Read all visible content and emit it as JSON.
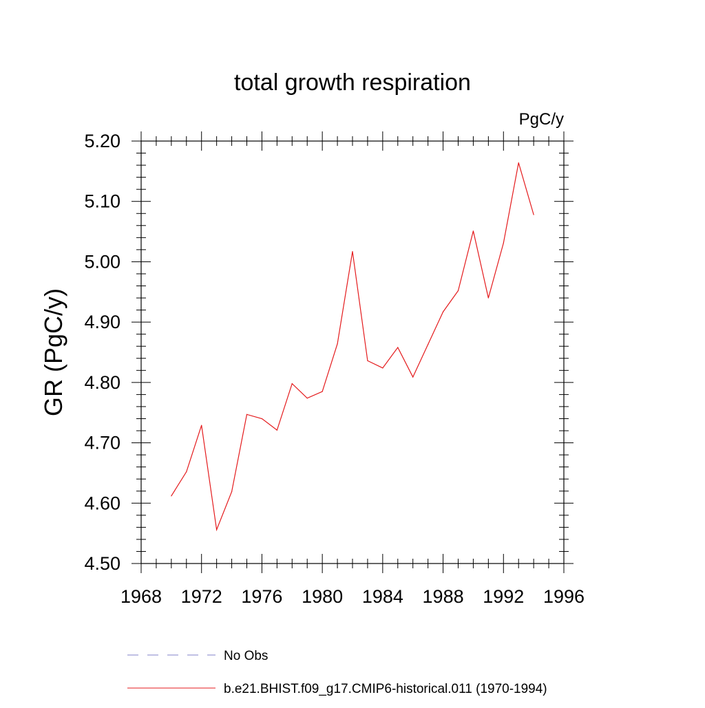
{
  "chart_data": {
    "type": "line",
    "title": "total growth respiration",
    "units": "PgC/y",
    "xlabel": "",
    "ylabel": "GR  (PgC/y)",
    "xlim": [
      1968,
      1996
    ],
    "ylim": [
      4.5,
      5.2
    ],
    "xticks": [
      1968,
      1972,
      1976,
      1980,
      1984,
      1988,
      1992,
      1996
    ],
    "yticks": [
      "4.50",
      "4.60",
      "4.70",
      "4.80",
      "4.90",
      "5.00",
      "5.10",
      "5.20"
    ],
    "grid": false,
    "legend_position": "bottom",
    "legend": [
      {
        "label": "No Obs",
        "color": "#8080c8",
        "style": "dashed"
      },
      {
        "label": "b.e21.BHIST.f09_g17.CMIP6-historical.011 (1970-1994)",
        "color": "#e41a1c",
        "style": "solid"
      }
    ],
    "series": [
      {
        "name": "b.e21.BHIST.f09_g17.CMIP6-historical.011 (1970-1994)",
        "color": "#e41a1c",
        "x": [
          1970,
          1971,
          1972,
          1973,
          1974,
          1975,
          1976,
          1977,
          1978,
          1979,
          1980,
          1981,
          1982,
          1983,
          1984,
          1985,
          1986,
          1987,
          1988,
          1989,
          1990,
          1991,
          1992,
          1993,
          1994
        ],
        "y": [
          4.612,
          4.652,
          4.729,
          4.556,
          4.619,
          4.747,
          4.74,
          4.721,
          4.798,
          4.774,
          4.785,
          4.864,
          5.017,
          4.836,
          4.824,
          4.858,
          4.809,
          4.863,
          4.917,
          4.952,
          5.051,
          4.94,
          5.031,
          5.164,
          5.078
        ]
      }
    ]
  }
}
